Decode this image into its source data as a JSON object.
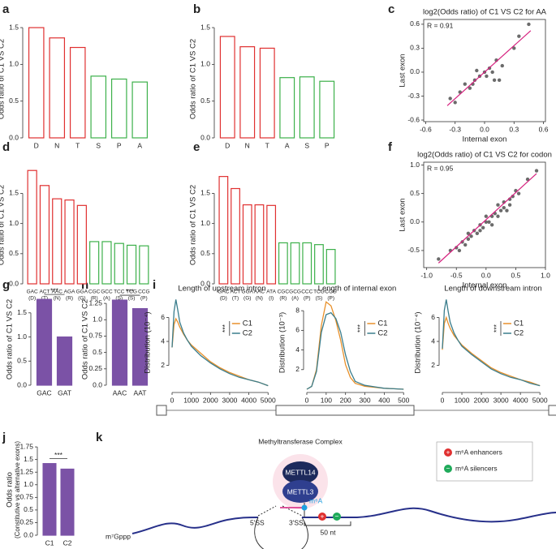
{
  "panel_labels": [
    "a",
    "b",
    "c",
    "d",
    "e",
    "f",
    "g",
    "h",
    "i",
    "j",
    "k"
  ],
  "chart_data": [
    {
      "type": "bar",
      "y_label": "Odds ratio of C1 VS C2",
      "bar_style": "outline",
      "categories": [
        "D",
        "N",
        "T",
        "S",
        "P",
        "A"
      ],
      "values": [
        1.5,
        1.36,
        1.23,
        0.84,
        0.8,
        0.76
      ],
      "colors": [
        "#e03030",
        "#e03030",
        "#e03030",
        "#3cb04a",
        "#3cb04a",
        "#3cb04a"
      ],
      "ylim": [
        0,
        1.6
      ],
      "yticks": [
        {
          "value": 0,
          "label": "0.0"
        },
        0.5,
        {
          "value": 1,
          "label": "1.0"
        },
        1.5
      ]
    },
    {
      "type": "bar",
      "y_label": "Odds ratio of C1 VS C2",
      "bar_style": "outline",
      "categories": [
        "D",
        "N",
        "T",
        "A",
        "S",
        "P"
      ],
      "values": [
        1.38,
        1.24,
        1.22,
        0.82,
        0.83,
        0.77
      ],
      "colors": [
        "#e03030",
        "#e03030",
        "#e03030",
        "#3cb04a",
        "#3cb04a",
        "#3cb04a"
      ],
      "ylim": [
        0,
        1.6
      ],
      "yticks": [
        {
          "value": 0,
          "label": "0.0"
        },
        0.5,
        {
          "value": 1,
          "label": "1.0"
        },
        1.5
      ]
    },
    {
      "type": "scatter",
      "title": "log2(Odds ratio) of C1 VS C2 for AA",
      "annotation": "R = 0.91",
      "x_label": "Internal exon",
      "y_label": "Last exon",
      "color": "#6b6b6b",
      "fit_color": "#d6217f",
      "x": [
        -0.35,
        -0.3,
        -0.25,
        -0.2,
        -0.15,
        -0.1,
        -0.08,
        -0.05,
        0,
        0.02,
        0.05,
        0.08,
        0.1,
        0.12,
        0.15,
        0.18,
        0.3,
        0.35,
        0.45,
        -0.12
      ],
      "values": [
        -0.33,
        -0.38,
        -0.25,
        -0.15,
        -0.2,
        -0.1,
        0.02,
        -0.05,
        0.0,
        -0.05,
        0.05,
        0.0,
        -0.1,
        0.15,
        -0.1,
        0.08,
        0.3,
        0.45,
        0.6,
        -0.15
      ],
      "fit_line": {
        "x": [
          -0.38,
          0.47
        ],
        "y": [
          -0.42,
          0.52
        ]
      },
      "xlim": [
        -0.62,
        0.62
      ],
      "xticks": [
        -0.6,
        -0.3,
        {
          "value": 0,
          "label": "0.0"
        },
        0.3,
        0.6
      ],
      "ylim": [
        -0.62,
        0.66
      ],
      "yticks": [
        -0.6,
        -0.3,
        {
          "value": 0,
          "label": "0.0"
        },
        0.3,
        0.6
      ]
    },
    {
      "type": "bar",
      "y_label": "Odds ratio of C1 VS C2",
      "bar_style": "outline",
      "categories": [
        "GAC",
        "ACT",
        "AAC",
        "AGA",
        "GGA",
        "CGC",
        "GCC",
        "TCC",
        "TCG",
        "CCG"
      ],
      "sublabels": [
        "(D)",
        "(T)",
        "(N)",
        "(R)",
        "(G)",
        "(R)",
        "(A)",
        "(S)",
        "(S)",
        "(P)"
      ],
      "values": [
        1.88,
        1.63,
        1.41,
        1.39,
        1.3,
        0.7,
        0.7,
        0.67,
        0.64,
        0.63
      ],
      "colors": [
        "#e03030",
        "#e03030",
        "#e03030",
        "#e03030",
        "#e03030",
        "#3cb04a",
        "#3cb04a",
        "#3cb04a",
        "#3cb04a",
        "#3cb04a"
      ],
      "ylim": [
        0,
        1.95
      ],
      "yticks": [
        {
          "value": 0,
          "label": "0.0"
        },
        0.5,
        {
          "value": 1,
          "label": "1.0"
        },
        1.5
      ]
    },
    {
      "type": "bar",
      "y_label": "Odds ratio of C1 VS C2",
      "bar_style": "outline",
      "categories": [
        "GAC",
        "ACT",
        "GGA",
        "AAC",
        "ATA",
        "CGC",
        "GCG",
        "CCC",
        "TCG",
        "CCG"
      ],
      "sublabels": [
        "(D)",
        "(T)",
        "(G)",
        "(N)",
        "(I)",
        "(R)",
        "(A)",
        "(P)",
        "(S)",
        "(P)"
      ],
      "values": [
        1.78,
        1.58,
        1.31,
        1.31,
        1.3,
        0.68,
        0.68,
        0.68,
        0.65,
        0.57
      ],
      "colors": [
        "#e03030",
        "#e03030",
        "#e03030",
        "#e03030",
        "#e03030",
        "#3cb04a",
        "#3cb04a",
        "#3cb04a",
        "#3cb04a",
        "#3cb04a"
      ],
      "ylim": [
        0,
        1.95
      ],
      "yticks": [
        {
          "value": 0,
          "label": "0.0"
        },
        0.5,
        {
          "value": 1,
          "label": "1.0"
        },
        1.5
      ]
    },
    {
      "type": "scatter",
      "title": "log2(Odds ratio) of C1 VS C2 for codon",
      "annotation": "R = 0.95",
      "x_label": "Internal exon",
      "y_label": "Last exon",
      "color": "#6b6b6b",
      "fit_color": "#d6217f",
      "x": [
        -0.8,
        -0.6,
        -0.5,
        -0.45,
        -0.4,
        -0.35,
        -0.3,
        -0.3,
        -0.25,
        -0.2,
        -0.15,
        -0.1,
        -0.1,
        -0.05,
        0,
        0,
        0.05,
        0.1,
        0.1,
        0.15,
        0.2,
        0.2,
        0.25,
        0.3,
        0.3,
        0.35,
        0.4,
        0.4,
        0.45,
        0.5,
        0.55,
        0.7,
        0.85
      ],
      "values": [
        -0.65,
        -0.5,
        -0.45,
        -0.5,
        -0.35,
        -0.4,
        -0.3,
        -0.2,
        -0.25,
        -0.15,
        -0.2,
        -0.05,
        -0.15,
        -0.1,
        0,
        0.1,
        0.0,
        0.1,
        -0.05,
        0.15,
        0.1,
        0.3,
        0.2,
        0.25,
        0.35,
        0.2,
        0.4,
        0.3,
        0.45,
        0.55,
        0.5,
        0.75,
        0.9
      ],
      "fit_line": {
        "x": [
          -0.8,
          0.85
        ],
        "y": [
          -0.72,
          0.85
        ]
      },
      "xlim": [
        -1.05,
        1.0
      ],
      "xticks": [
        {
          "value": -1,
          "label": "-1.0"
        },
        -0.5,
        {
          "value": 0,
          "label": "0.0"
        },
        0.5,
        {
          "value": 1,
          "label": "1.0"
        }
      ],
      "ylim": [
        -0.8,
        1.05
      ],
      "yticks": [
        -0.5,
        {
          "value": 0,
          "label": "0.0"
        },
        0.5,
        {
          "value": 1,
          "label": "1.0"
        }
      ]
    },
    {
      "type": "bar",
      "y_label": "Odds ratio of C1 VS C2",
      "bar_style": "filled",
      "color": "#7b52a6",
      "annotation": "***",
      "categories": [
        "GAC",
        "GAT"
      ],
      "values": [
        1.78,
        1.0
      ],
      "ylim": [
        0,
        1.9
      ],
      "yticks": [
        {
          "value": 0,
          "label": "0.0"
        },
        0.5,
        {
          "value": 1,
          "label": "1.0"
        },
        1.5
      ]
    },
    {
      "type": "bar",
      "y_label": "Odds ratio of C1 VS C2",
      "bar_style": "filled",
      "color": "#7b52a6",
      "annotation": "***",
      "categories": [
        "AAC",
        "AAT"
      ],
      "values": [
        1.3,
        1.17
      ],
      "ylim": [
        0,
        1.4
      ],
      "yticks": [
        {
          "value": 0,
          "label": "0.0"
        },
        0.25,
        0.5,
        0.75,
        {
          "value": 1,
          "label": "1.0"
        },
        1.25
      ]
    },
    {
      "type": "line",
      "title": "Length of upstream intron",
      "y_label": "Distribution (10⁻⁴)",
      "annotation": "***",
      "x": [
        0,
        100,
        200,
        300,
        400,
        600,
        800,
        1000,
        1500,
        2000,
        2500,
        3000,
        3500,
        4000,
        4500,
        5000
      ],
      "series": [
        {
          "name": "C1",
          "color": "#e8902a",
          "values": [
            3.5,
            5.4,
            5.9,
            5.6,
            5.2,
            4.6,
            4.1,
            3.7,
            3.0,
            2.3,
            1.8,
            1.4,
            1.1,
            0.8,
            0.6,
            0.3
          ]
        },
        {
          "name": "C2",
          "color": "#3a7d8c",
          "values": [
            3.5,
            6.5,
            7.5,
            6.6,
            5.6,
            4.7,
            4.1,
            3.6,
            2.8,
            2.2,
            1.7,
            1.3,
            1.0,
            0.8,
            0.6,
            0.3
          ]
        }
      ],
      "xlim": [
        0,
        5200
      ],
      "xticks": [
        0,
        1000,
        2000,
        3000,
        4000,
        5000
      ],
      "ylim": [
        0,
        7.8
      ],
      "yticks": [
        2,
        4,
        6
      ]
    },
    {
      "type": "line",
      "title": "Length of internal exon",
      "y_label": "Distribution (10⁻³)",
      "annotation": "***",
      "x": [
        0,
        25,
        50,
        75,
        100,
        125,
        150,
        175,
        200,
        225,
        250,
        300,
        350,
        400,
        450,
        500
      ],
      "series": [
        {
          "name": "C1",
          "color": "#e8902a",
          "values": [
            0,
            0.3,
            2,
            6.5,
            8.9,
            8.5,
            7,
            5,
            2.5,
            1.2,
            0.6,
            0.3,
            0.2,
            0.1,
            0.05,
            0
          ]
        },
        {
          "name": "C2",
          "color": "#3a7d8c",
          "values": [
            0,
            0.3,
            1.8,
            5.8,
            7.6,
            7.8,
            7.2,
            5.8,
            3.5,
            1.8,
            0.8,
            0.4,
            0.25,
            0.1,
            0.05,
            0
          ]
        }
      ],
      "xlim": [
        0,
        520
      ],
      "xticks": [
        0,
        100,
        200,
        300,
        400,
        500
      ],
      "ylim": [
        0,
        9.5
      ],
      "yticks": [
        2,
        4,
        6,
        8
      ]
    },
    {
      "type": "line",
      "title": "Length of downstream intron",
      "y_label": "Distribution (10⁻⁴)",
      "annotation": "***",
      "x": [
        0,
        100,
        200,
        300,
        400,
        600,
        800,
        1000,
        1500,
        2000,
        2500,
        3000,
        3500,
        4000,
        4500,
        5000
      ],
      "series": [
        {
          "name": "C1",
          "color": "#e8902a",
          "values": [
            3.3,
            5.5,
            6.0,
            5.5,
            5.1,
            4.5,
            4.1,
            3.7,
            3.0,
            2.4,
            1.8,
            1.4,
            1.1,
            0.8,
            0.6,
            0.3
          ]
        },
        {
          "name": "C2",
          "color": "#3a7d8c",
          "values": [
            3.4,
            6.6,
            7.5,
            6.5,
            5.6,
            4.7,
            4.1,
            3.6,
            2.9,
            2.3,
            1.7,
            1.3,
            1.0,
            0.8,
            0.5,
            0.3
          ]
        }
      ],
      "xlim": [
        0,
        5200
      ],
      "xticks": [
        0,
        1000,
        2000,
        3000,
        4000,
        5000
      ],
      "ylim": [
        0,
        7.8
      ],
      "yticks": [
        2,
        4,
        6
      ]
    },
    {
      "type": "bar",
      "y_label": "Odds ratio",
      "y_sublabel": "(Constitutive vs alternative exons)",
      "bar_style": "filled",
      "color": "#7b52a6",
      "annotation": "***",
      "categories": [
        "C1",
        "C2"
      ],
      "values": [
        1.42,
        1.31
      ],
      "ylim": [
        0,
        1.8
      ],
      "yticks": [
        {
          "value": 0,
          "label": "0.0"
        },
        0.25,
        0.5,
        0.75,
        {
          "value": 1,
          "label": "1.0"
        },
        1.25,
        1.5,
        1.75
      ]
    }
  ],
  "diagram": {
    "complex_title": "Methyltransferase Complex",
    "subunit_top": "METTL14",
    "subunit_bottom": "METTL3",
    "modification": "m⁶A",
    "splice_5": "5'SS",
    "splice_3": "3'SS",
    "distance": "50 nt",
    "cap": "m⁷Gppp",
    "legend": [
      "m⁶A enhancers",
      "m⁶A silencers"
    ]
  }
}
